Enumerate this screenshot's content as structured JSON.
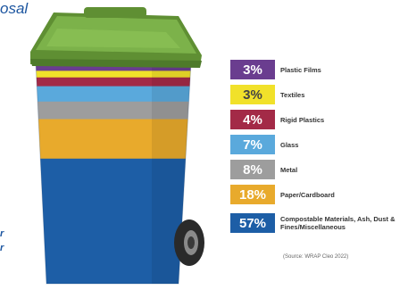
{
  "heading_fragment": "osal",
  "footnotes": [
    "r",
    "r"
  ],
  "source": "(Source: WRAP Cleo 2022)",
  "chart_data": {
    "type": "bar",
    "title": "",
    "stacked": true,
    "categories": [
      "Plastic Films",
      "Textiles",
      "Rigid Plastics",
      "Glass",
      "Metal",
      "Paper/Cardboard",
      "Compostable Materials, Ash, Dust & Fines/Miscellaneous"
    ],
    "values": [
      3,
      3,
      4,
      7,
      8,
      18,
      57
    ],
    "labels": [
      "3%",
      "3%",
      "4%",
      "7%",
      "8%",
      "18%",
      "57%"
    ],
    "unit": "%",
    "colors": [
      "#6a3d8f",
      "#f1e12a",
      "#a32a47",
      "#5aa9dc",
      "#9d9d9d",
      "#e8aa2c",
      "#1d5ea6"
    ],
    "lid_color": "#74a640",
    "legend": "right"
  }
}
